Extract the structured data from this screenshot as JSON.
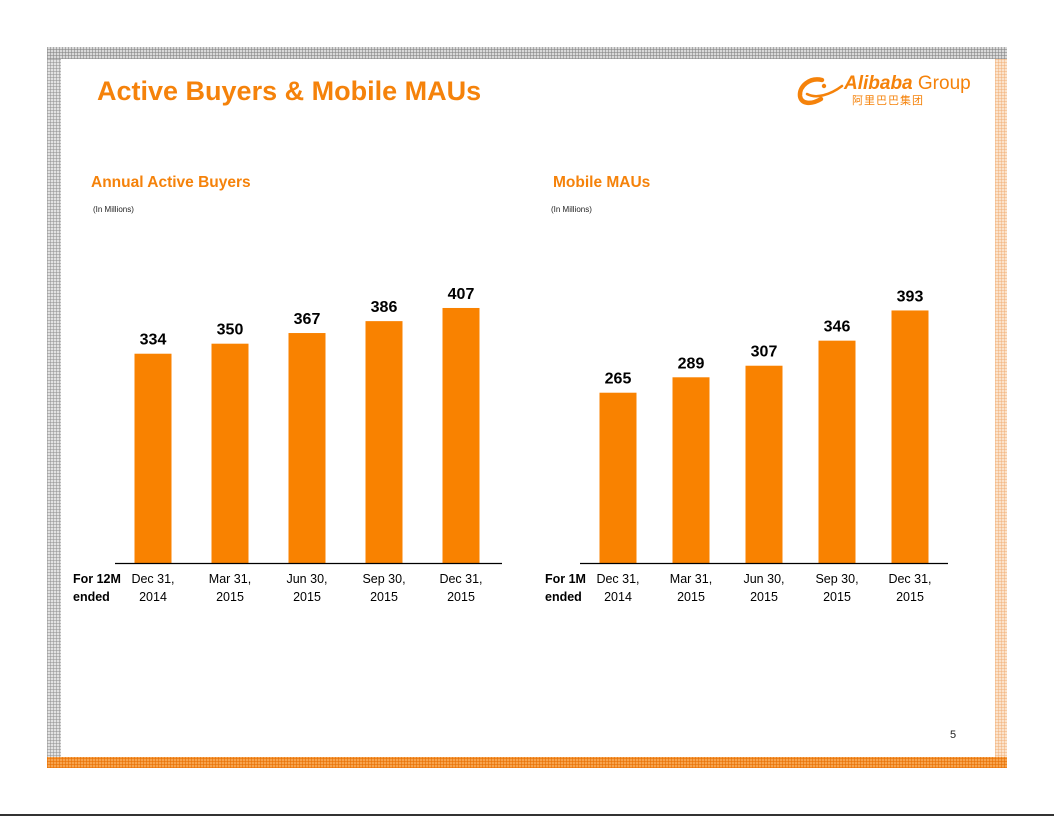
{
  "title": "Active Buyers & Mobile MAUs",
  "logo": {
    "brand": "Alibaba",
    "group": "Group",
    "chinese": "阿里巴巴集团"
  },
  "colors": {
    "accent": "#f5820a",
    "bar": "#f98200"
  },
  "page_number": "5",
  "chart_data": [
    {
      "type": "bar",
      "title": "Annual Active Buyers",
      "subtitle": "(In Millions)",
      "period_label": [
        "For 12M",
        "ended"
      ],
      "categories": [
        [
          "Dec 31,",
          "2014"
        ],
        [
          "Mar 31,",
          "2015"
        ],
        [
          "Jun 30,",
          "2015"
        ],
        [
          "Sep 30,",
          "2015"
        ],
        [
          "Dec 31,",
          "2015"
        ]
      ],
      "values": [
        334,
        350,
        367,
        386,
        407
      ],
      "ylim": [
        0,
        450
      ],
      "grid": false,
      "legend": "none"
    },
    {
      "type": "bar",
      "title": "Mobile MAUs",
      "subtitle": "(In Millions)",
      "period_label": [
        "For 1M",
        "ended"
      ],
      "categories": [
        [
          "Dec 31,",
          "2014"
        ],
        [
          "Mar 31,",
          "2015"
        ],
        [
          "Jun 30,",
          "2015"
        ],
        [
          "Sep 30,",
          "2015"
        ],
        [
          "Dec 31,",
          "2015"
        ]
      ],
      "values": [
        265,
        289,
        307,
        346,
        393
      ],
      "ylim": [
        0,
        450
      ],
      "grid": false,
      "legend": "none"
    }
  ]
}
